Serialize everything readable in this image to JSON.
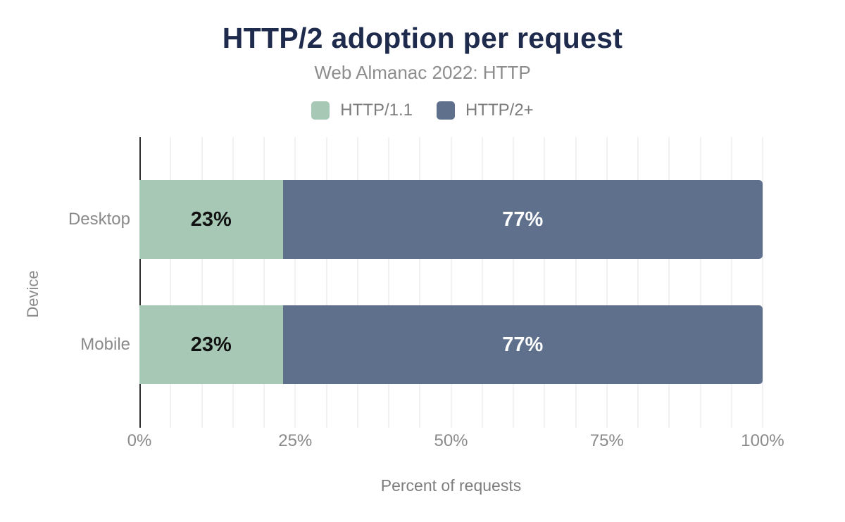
{
  "chart_data": {
    "type": "bar",
    "orientation": "horizontal",
    "stacked": true,
    "title": "HTTP/2 adoption per request",
    "subtitle": "Web Almanac 2022: HTTP",
    "categories": [
      "Desktop",
      "Mobile"
    ],
    "series": [
      {
        "name": "HTTP/1.1",
        "color": "#a6c8b5",
        "label_color": "#111111",
        "values": [
          23,
          23
        ]
      },
      {
        "name": "HTTP/2+",
        "color": "#5e708c",
        "label_color": "#ffffff",
        "values": [
          77,
          77
        ]
      }
    ],
    "data_labels": [
      [
        "23%",
        "77%"
      ],
      [
        "23%",
        "77%"
      ]
    ],
    "xlabel": "Percent of requests",
    "ylabel": "Device",
    "xlim": [
      0,
      100
    ],
    "x_ticks": [
      {
        "value": 0,
        "label": "0%"
      },
      {
        "value": 25,
        "label": "25%"
      },
      {
        "value": 50,
        "label": "50%"
      },
      {
        "value": 75,
        "label": "75%"
      },
      {
        "value": 100,
        "label": "100%"
      }
    ],
    "minor_grid_step": 5,
    "grid": true,
    "legend_position": "top",
    "colors": {
      "title": "#1e2b4d",
      "subtitle": "#8d8d8d",
      "axis_text": "#8a8a8a",
      "gridline": "#f1f1f1",
      "axis_line": "#2d2d2d"
    }
  }
}
